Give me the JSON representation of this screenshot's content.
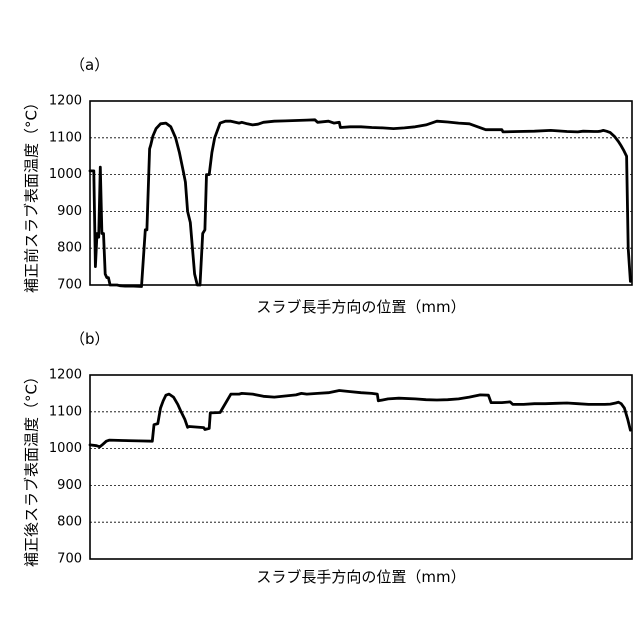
{
  "panels": [
    {
      "label": "（a）"
    },
    {
      "label": "（b）"
    }
  ],
  "chart_data": [
    {
      "type": "line",
      "panel": "（a）",
      "xlabel": "スラブ長手方向の位置（mm）",
      "ylabel": "補正前スラブ表面温度（°C）",
      "ylim": [
        700,
        1200
      ],
      "yticks": [
        700,
        800,
        900,
        1000,
        1100,
        1200
      ],
      "grid": "horizontal dashed",
      "x": [
        0,
        0.7,
        1.0,
        1.3,
        1.6,
        1.9,
        2.2,
        2.5,
        2.8,
        3.1,
        3.4,
        3.7,
        4.0,
        4.3,
        4.6,
        5.0,
        5.5,
        6.5,
        8,
        9.5,
        10.2,
        10.5,
        11,
        11.2,
        11.6,
        12.2,
        13.0,
        14.0,
        14.9,
        15.8,
        16.5,
        17.2,
        17.6,
        18.0,
        18.5,
        19.3,
        19.8,
        20.3,
        20.8,
        21.2,
        21.5,
        22.0,
        22.5,
        23.0,
        24,
        25,
        26,
        27.5,
        28,
        29,
        30,
        31,
        32,
        34,
        36,
        38,
        40,
        41.5,
        42,
        44,
        45,
        46,
        46.2,
        48,
        50,
        52,
        54,
        56,
        58,
        60,
        62,
        63,
        64,
        66,
        68,
        70,
        73,
        76,
        76.2,
        79,
        82,
        85,
        88,
        90,
        91,
        93,
        93.7,
        94.2,
        94.7,
        95.3,
        96.0,
        96.8,
        97.5,
        98.0,
        98.5,
        99.0,
        99.3,
        99.7
      ],
      "y": [
        1010,
        1010,
        750,
        840,
        830,
        1020,
        840,
        840,
        730,
        720,
        720,
        700,
        700,
        700,
        700,
        700,
        698,
        697,
        697,
        696,
        850,
        850,
        1070,
        1080,
        1105,
        1125,
        1138,
        1140,
        1130,
        1100,
        1060,
        1010,
        980,
        900,
        870,
        730,
        700,
        700,
        840,
        850,
        1000,
        1000,
        1060,
        1100,
        1140,
        1145,
        1145,
        1140,
        1142,
        1138,
        1135,
        1137,
        1142,
        1145,
        1146,
        1147,
        1148,
        1149,
        1142,
        1145,
        1140,
        1142,
        1128,
        1130,
        1130,
        1128,
        1127,
        1125,
        1127,
        1130,
        1135,
        1140,
        1145,
        1143,
        1140,
        1138,
        1122,
        1122,
        1116,
        1117,
        1118,
        1120,
        1117,
        1116,
        1118,
        1117,
        1117,
        1118,
        1120,
        1118,
        1114,
        1103,
        1090,
        1078,
        1065,
        1050,
        800,
        710
      ]
    },
    {
      "type": "line",
      "panel": "（b）",
      "xlabel": "スラブ長手方向の位置（mm）",
      "ylabel": "補正後スラブ表面温度（°C）",
      "ylim": [
        700,
        1200
      ],
      "yticks": [
        700,
        800,
        900,
        1000,
        1100,
        1200
      ],
      "grid": "horizontal dashed",
      "x": [
        0,
        1.2,
        1.8,
        2.4,
        3.0,
        3.6,
        6,
        9,
        11.5,
        11.8,
        12.5,
        13.0,
        13.5,
        14.0,
        14.6,
        15.4,
        16.2,
        16.8,
        17.5,
        18.0,
        18.3,
        21.0,
        21.2,
        22.0,
        22.2,
        24,
        26,
        27.5,
        28,
        30,
        32,
        34,
        36,
        38,
        39,
        40,
        42,
        44,
        46,
        48,
        50,
        52,
        53,
        53.2,
        55,
        57,
        60,
        62,
        64,
        66,
        68,
        70,
        72,
        73.5,
        74,
        76,
        77.5,
        78,
        80,
        82,
        84,
        86,
        88,
        90,
        92,
        94,
        95,
        96,
        97,
        97.5,
        98,
        98.6,
        99.2,
        99.7
      ],
      "y": [
        1010,
        1008,
        1005,
        1012,
        1020,
        1023,
        1022,
        1021,
        1020,
        1065,
        1068,
        1110,
        1130,
        1145,
        1148,
        1140,
        1120,
        1100,
        1080,
        1058,
        1060,
        1057,
        1052,
        1055,
        1097,
        1098,
        1148,
        1148,
        1150,
        1148,
        1142,
        1140,
        1143,
        1146,
        1150,
        1148,
        1150,
        1152,
        1158,
        1155,
        1152,
        1150,
        1148,
        1130,
        1135,
        1137,
        1135,
        1133,
        1132,
        1133,
        1135,
        1140,
        1146,
        1145,
        1125,
        1125,
        1127,
        1120,
        1120,
        1122,
        1122,
        1123,
        1124,
        1122,
        1120,
        1120,
        1120,
        1121,
        1124,
        1126,
        1122,
        1110,
        1080,
        1050
      ]
    }
  ]
}
